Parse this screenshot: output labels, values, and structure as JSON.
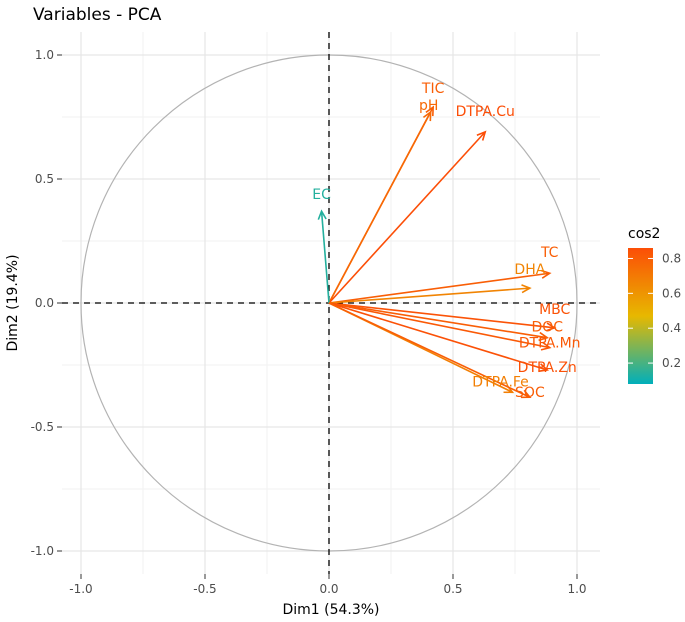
{
  "chart_data": {
    "type": "pca-variables",
    "title": "Variables - PCA",
    "xlabel": "Dim1 (54.3%)",
    "ylabel": "Dim2 (19.4%)",
    "xlim": [
      -1.0,
      1.0
    ],
    "ylim": [
      -1.0,
      1.0
    ],
    "x_ticks": [
      -1.0,
      -0.5,
      0.0,
      0.5,
      1.0
    ],
    "x_tick_labels": [
      "-1.0",
      "-0.5",
      "0.0",
      "0.5",
      "1.0"
    ],
    "y_ticks": [
      -1.0,
      -0.5,
      0.0,
      0.5,
      1.0
    ],
    "y_tick_labels": [
      "-1.0",
      "-0.5",
      "0.0",
      "0.5",
      "1.0"
    ],
    "grid": true,
    "unit_circle": true,
    "color_variable": "cos2",
    "colorbar": {
      "title": "cos2",
      "range": [
        0.08,
        0.86
      ],
      "ticks": [
        0.2,
        0.4,
        0.6,
        0.8
      ],
      "tick_labels": [
        "0.2",
        "0.4",
        "0.6",
        "0.8"
      ],
      "colors": [
        "#00AFBB",
        "#E7B800",
        "#FC4E07"
      ]
    },
    "variables": [
      {
        "name": "TIC",
        "x": 0.42,
        "y": 0.79,
        "cos2": 0.8
      },
      {
        "name": "pH",
        "x": 0.41,
        "y": 0.77,
        "cos2": 0.76
      },
      {
        "name": "DTPA.Cu",
        "x": 0.63,
        "y": 0.69,
        "cos2": 0.87
      },
      {
        "name": "EC",
        "x": -0.03,
        "y": 0.37,
        "cos2": 0.14
      },
      {
        "name": "TC",
        "x": 0.89,
        "y": 0.12,
        "cos2": 0.8
      },
      {
        "name": "DHA",
        "x": 0.81,
        "y": 0.06,
        "cos2": 0.66
      },
      {
        "name": "MBC",
        "x": 0.91,
        "y": -0.1,
        "cos2": 0.84
      },
      {
        "name": "DOC",
        "x": 0.88,
        "y": -0.14,
        "cos2": 0.8
      },
      {
        "name": "DTPA.Mn",
        "x": 0.89,
        "y": -0.18,
        "cos2": 0.82
      },
      {
        "name": "DTPA.Zn",
        "x": 0.88,
        "y": -0.27,
        "cos2": 0.85
      },
      {
        "name": "DTPA.Fe",
        "x": 0.74,
        "y": -0.36,
        "cos2": 0.68
      },
      {
        "name": "SOC",
        "x": 0.81,
        "y": -0.38,
        "cos2": 0.8
      }
    ]
  }
}
